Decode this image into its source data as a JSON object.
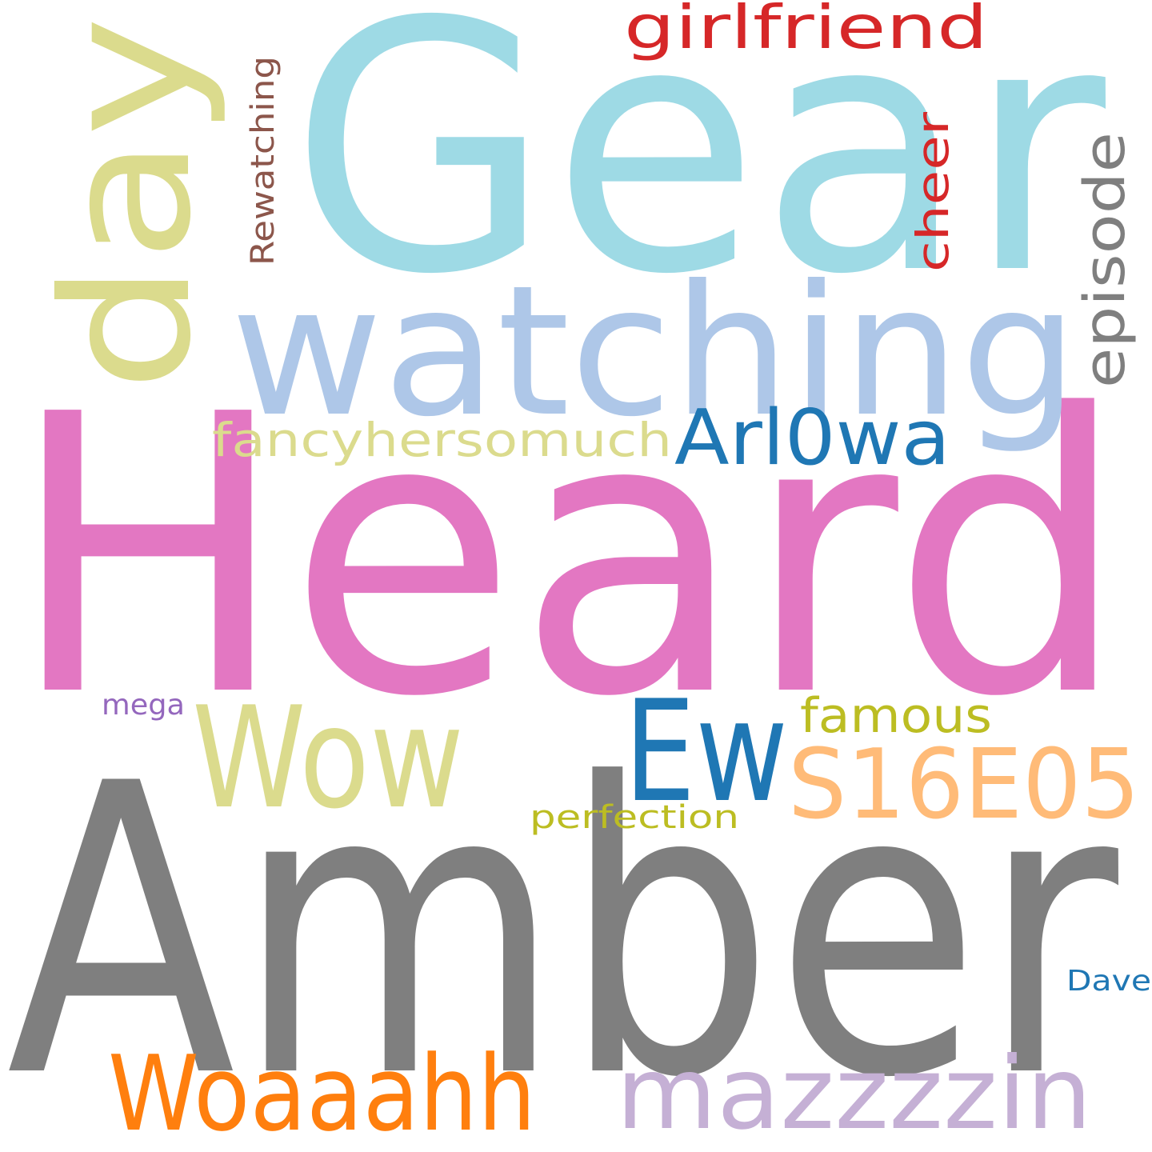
{
  "words": [
    {
      "text": "Amber",
      "color": "#7f7f7f"
    },
    {
      "text": "Heard",
      "color": "#e377c2"
    },
    {
      "text": "Gear",
      "color": "#9edae5"
    },
    {
      "text": "watching",
      "color": "#aec7e8"
    },
    {
      "text": "day",
      "color": "#dbdb8d"
    },
    {
      "text": "Wow",
      "color": "#dbdb8d"
    },
    {
      "text": "Ew",
      "color": "#1f77b4"
    },
    {
      "text": "S16E05",
      "color": "#ffbb78"
    },
    {
      "text": "Woaaahh",
      "color": "#ff7f0e"
    },
    {
      "text": "mazzzzin",
      "color": "#c5b0d5"
    },
    {
      "text": "girlfriend",
      "color": "#d62728"
    },
    {
      "text": "Arl0wa",
      "color": "#1f77b4"
    },
    {
      "text": "episode",
      "color": "#7f7f7f"
    },
    {
      "text": "fancyhersomuch",
      "color": "#dbdb8d"
    },
    {
      "text": "cheer",
      "color": "#d62728"
    },
    {
      "text": "famous",
      "color": "#bcbd22"
    },
    {
      "text": "Rewatching",
      "color": "#8c564b"
    },
    {
      "text": "perfection",
      "color": "#bcbd22"
    },
    {
      "text": "mega",
      "color": "#9467bd"
    },
    {
      "text": "Dave",
      "color": "#1f77b4"
    }
  ]
}
